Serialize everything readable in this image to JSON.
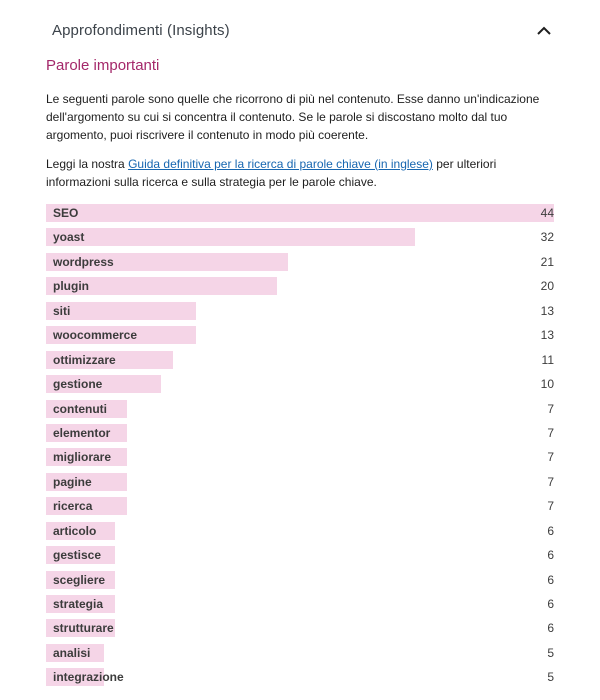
{
  "header": {
    "title": "Approfondimenti (Insights)",
    "toggle_icon": "chevron-up-icon"
  },
  "section": {
    "title": "Parole importanti",
    "description": "Le seguenti parole sono quelle che ricorrono di più nel contenuto. Esse danno un'indicazione dell'argomento su cui si concentra il contenuto. Se le parole si discostano molto dal tuo argomento, puoi riscrivere il contenuto in modo più coerente.",
    "read_prefix": "Leggi la nostra ",
    "read_link": "Guida definitiva per la ricerca di parole chiave (in inglese)",
    "read_suffix": " per ulteriori informazioni sulla ricerca e sulla strategia per le parole chiave."
  },
  "colors": {
    "accent": "#a4286a",
    "bar": "#f5d5e7",
    "link": "#1766b0"
  },
  "keywords": [
    {
      "word": "SEO",
      "count": 44
    },
    {
      "word": "yoast",
      "count": 32
    },
    {
      "word": "wordpress",
      "count": 21
    },
    {
      "word": "plugin",
      "count": 20
    },
    {
      "word": "siti",
      "count": 13
    },
    {
      "word": "woocommerce",
      "count": 13
    },
    {
      "word": "ottimizzare",
      "count": 11
    },
    {
      "word": "gestione",
      "count": 10
    },
    {
      "word": "contenuti",
      "count": 7
    },
    {
      "word": "elementor",
      "count": 7
    },
    {
      "word": "migliorare",
      "count": 7
    },
    {
      "word": "pagine",
      "count": 7
    },
    {
      "word": "ricerca",
      "count": 7
    },
    {
      "word": "articolo",
      "count": 6
    },
    {
      "word": "gestisce",
      "count": 6
    },
    {
      "word": "scegliere",
      "count": 6
    },
    {
      "word": "strategia",
      "count": 6
    },
    {
      "word": "strutturare",
      "count": 6
    },
    {
      "word": "analisi",
      "count": 5
    },
    {
      "word": "integrazione",
      "count": 5
    }
  ]
}
